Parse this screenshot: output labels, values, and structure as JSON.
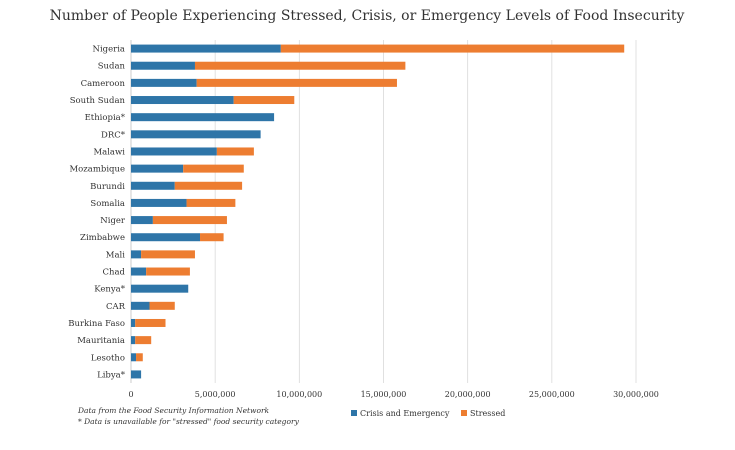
{
  "chart_data": {
    "type": "bar",
    "orientation": "horizontal",
    "stacked": true,
    "title": "Number of People Experiencing Stressed, Crisis, or Emergency Levels of Food Insecurity",
    "categories": [
      "Nigeria",
      "Sudan",
      "Cameroon",
      "South Sudan",
      "Ethiopia*",
      "DRC*",
      "Malawi",
      "Mozambique",
      "Burundi",
      "Somalia",
      "Niger",
      "Zimbabwe",
      "Mali",
      "Chad",
      "Kenya*",
      "CAR",
      "Burkina Faso",
      "Mauritania",
      "Lesotho",
      "Libya*"
    ],
    "series": [
      {
        "name": "Crisis and Emergency",
        "color": "#2e75a8",
        "values": [
          8900000,
          3800000,
          3900000,
          6100000,
          8500000,
          7700000,
          5100000,
          3100000,
          2600000,
          3300000,
          1300000,
          4100000,
          600000,
          900000,
          3400000,
          1100000,
          250000,
          250000,
          300000,
          600000
        ]
      },
      {
        "name": "Stressed",
        "color": "#ed7d31",
        "values": [
          20400000,
          12500000,
          11900000,
          3600000,
          0,
          0,
          2200000,
          3600000,
          4000000,
          2900000,
          4400000,
          1400000,
          3200000,
          2600000,
          0,
          1500000,
          1800000,
          950000,
          400000,
          0
        ]
      }
    ],
    "xlim": [
      0,
      30000000
    ],
    "xticks": [
      "0",
      "5,000,000",
      "10,000,000",
      "15,000,000",
      "20,000,000",
      "25,000,000",
      "30,000,000"
    ],
    "xtick_values": [
      0,
      5000000,
      10000000,
      15000000,
      20000000,
      25000000,
      30000000
    ],
    "grid": true,
    "legend_position": "bottom",
    "notes": [
      "Data from the Food Security Information Network",
      "* Data is unavailable for \"stressed\" food security category"
    ]
  }
}
